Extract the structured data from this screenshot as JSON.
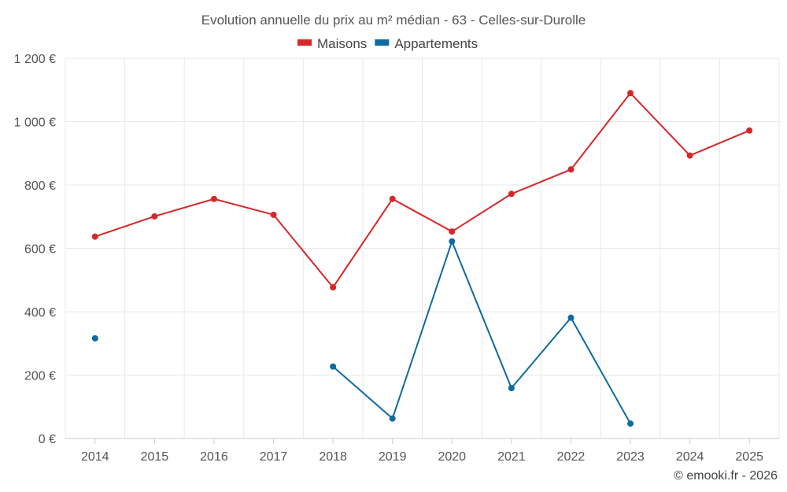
{
  "chart_data": {
    "type": "line",
    "title": "Evolution annuelle du prix au m² médian - 63 - Celles-sur-Durolle",
    "categories": [
      "2014",
      "2015",
      "2016",
      "2017",
      "2018",
      "2019",
      "2020",
      "2021",
      "2022",
      "2023",
      "2024",
      "2025"
    ],
    "ylim": [
      0,
      1200
    ],
    "yticks": [
      0,
      200,
      400,
      600,
      800,
      1000,
      1200
    ],
    "ytick_labels": [
      "0 €",
      "200 €",
      "400 €",
      "600 €",
      "800 €",
      "1 000 €",
      "1 200 €"
    ],
    "grid": true,
    "legend_position": "top-center",
    "series": [
      {
        "name": "Maisons",
        "color": "#d62728",
        "values": [
          637,
          701,
          756,
          706,
          477,
          756,
          653,
          772,
          849,
          1090,
          893,
          972
        ]
      },
      {
        "name": "Appartements",
        "color": "#0e6aa0",
        "values": [
          316,
          null,
          null,
          null,
          227,
          63,
          622,
          159,
          381,
          null,
          null,
          null
        ]
      }
    ],
    "extra_points": {
      "Appartements": {
        "2023": 47
      }
    }
  },
  "credit": "© emooki.fr - 2026"
}
